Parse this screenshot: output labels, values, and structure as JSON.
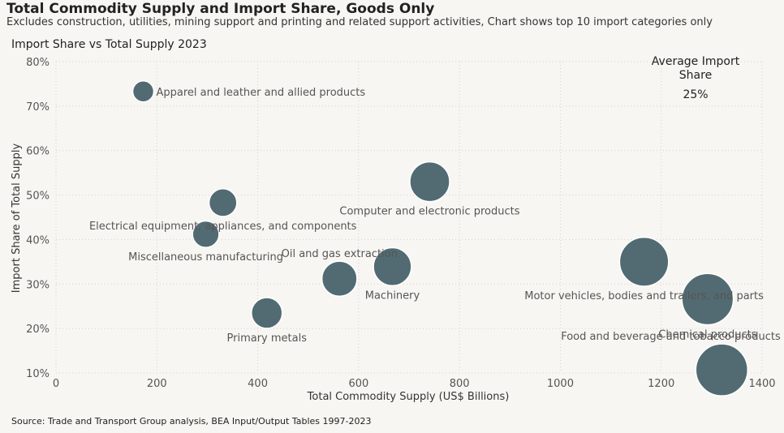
{
  "header": {
    "title": "Total Commodity Supply and Import Share, Goods Only",
    "subtitle": "Excludes construction, utilities, mining support and printing and related support activities, Chart shows top 10 import categories only"
  },
  "chart_title": "Import Share vs Total Supply 2023",
  "average": {
    "label": "Average Import Share",
    "value": "25%"
  },
  "source": "Source: Trade and Transport Group analysis, BEA Input/Output Tables 1997-2023",
  "colors": {
    "bubble": "#526b73",
    "grid": "#d4d2cc",
    "background": "#f8f6f2"
  },
  "chart_data": {
    "type": "scatter",
    "xlabel": "Total Commodity Supply (US$ Billions)",
    "ylabel": "Import Share of Total Supply",
    "xlim": [
      0,
      1400
    ],
    "ylim": [
      10,
      80
    ],
    "x_ticks": [
      "0",
      "200",
      "400",
      "600",
      "800",
      "1000",
      "1200",
      "1400"
    ],
    "y_ticks": [
      "10%",
      "20%",
      "30%",
      "40%",
      "50%",
      "60%",
      "70%",
      "80%"
    ],
    "grid": true,
    "points": [
      {
        "label": "Apparel and leather and allied products",
        "x": 173,
        "y": 73.3,
        "size": 173,
        "label_pos": "right"
      },
      {
        "label": "Computer and electronic products",
        "x": 741,
        "y": 53.0,
        "size": 741,
        "label_pos": "below"
      },
      {
        "label": "Electrical equipment, appliances, and components",
        "x": 331,
        "y": 48.3,
        "size": 331,
        "label_pos": "below"
      },
      {
        "label": "Miscellaneous manufacturing",
        "x": 297,
        "y": 41.2,
        "size": 297,
        "label_pos": "below"
      },
      {
        "label": "Oil and gas extraction",
        "x": 562,
        "y": 31.2,
        "size": 562,
        "label_pos": "above"
      },
      {
        "label": "Machinery",
        "x": 667,
        "y": 33.9,
        "size": 667,
        "label_pos": "below"
      },
      {
        "label": "Motor vehicles, bodies and trailers, and parts",
        "x": 1166,
        "y": 35.0,
        "size": 1166,
        "label_pos": "below"
      },
      {
        "label": "Chemical products",
        "x": 1292,
        "y": 26.6,
        "size": 1292,
        "label_pos": "below"
      },
      {
        "label": "Primary metals",
        "x": 418,
        "y": 23.5,
        "size": 418,
        "label_pos": "below"
      },
      {
        "label": "Food and beverage and tobacco products",
        "x": 1320,
        "y": 10.7,
        "size": 1320,
        "label_pos": "above"
      }
    ]
  }
}
